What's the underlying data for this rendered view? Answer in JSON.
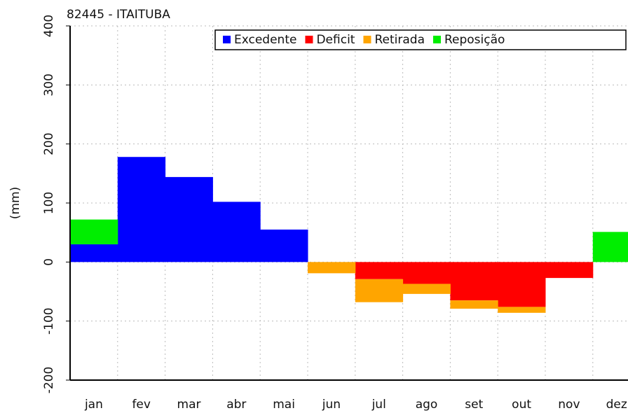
{
  "chart_data": {
    "type": "bar",
    "stacked": true,
    "title": "82445 - ITAITUBA",
    "y_label": "(mm)",
    "categories": [
      "jan",
      "fev",
      "mar",
      "abr",
      "mai",
      "jun",
      "jul",
      "ago",
      "set",
      "out",
      "nov",
      "dez"
    ],
    "series": [
      {
        "name": "Excedente",
        "color": "#0000ff",
        "values": [
          30,
          178,
          144,
          102,
          55,
          null,
          null,
          null,
          null,
          null,
          null,
          null
        ]
      },
      {
        "name": "Deficit",
        "color": "#ff0000",
        "values": [
          null,
          null,
          null,
          null,
          null,
          null,
          -29,
          -37,
          -65,
          -76,
          -27,
          null
        ]
      },
      {
        "name": "Retirada",
        "color": "#ffa500",
        "values": [
          null,
          null,
          null,
          null,
          null,
          -19,
          -39,
          -17,
          -14,
          -10,
          null,
          null
        ]
      },
      {
        "name": "Reposição",
        "color": "#00ee00",
        "values": [
          42,
          null,
          null,
          null,
          null,
          null,
          null,
          null,
          null,
          null,
          null,
          51
        ]
      }
    ],
    "ylim": [
      -200,
      400
    ],
    "yticks": [
      -200,
      -100,
      0,
      100,
      200,
      300,
      400
    ],
    "grid": true
  }
}
